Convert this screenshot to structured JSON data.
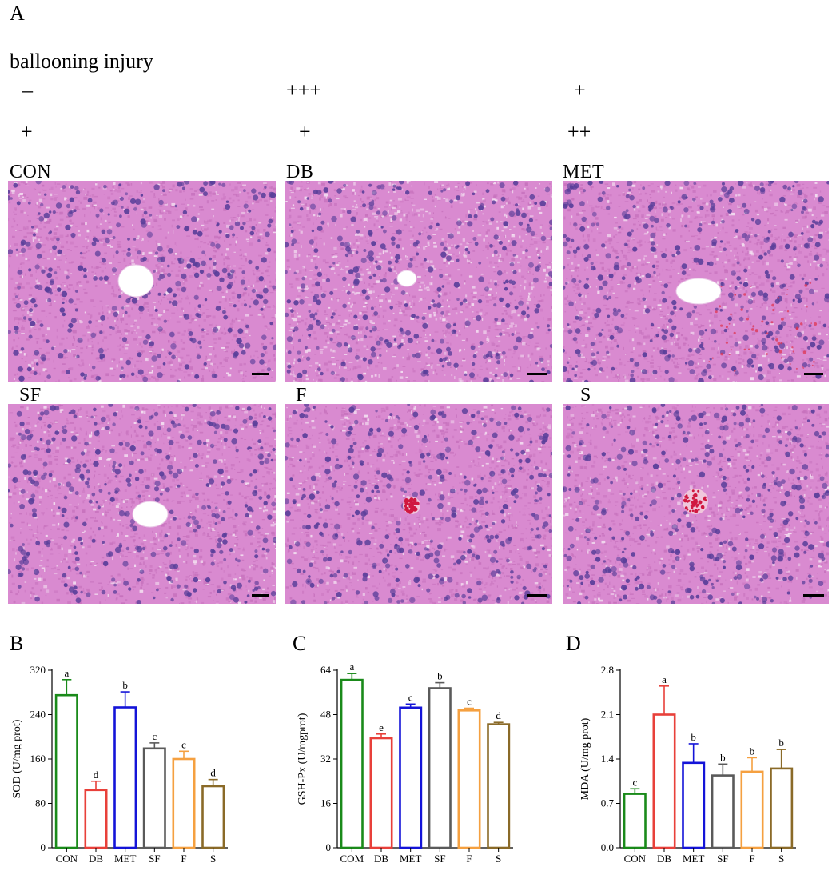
{
  "figure": {
    "panel_a_letter": "A",
    "ballooning_title": "ballooning injury",
    "score_row1": [
      "–",
      "+++",
      "+"
    ],
    "score_row2": [
      "+",
      "+",
      "++"
    ],
    "image_labels": [
      "CON",
      "DB",
      "MET",
      "SF",
      "F",
      "S"
    ],
    "panel_b_letter": "B",
    "panel_c_letter": "C",
    "panel_d_letter": "D"
  },
  "colors": {
    "CON": "#1a8a1a",
    "DB": "#e8403a",
    "MET": "#1414d8",
    "SF": "#5a5a5a",
    "F": "#f5a040",
    "S": "#8a6a28",
    "tissue": "#d98ad0",
    "nuclei": "#5a3f9a"
  },
  "chart_data": [
    {
      "type": "bar",
      "ylabel": "SOD (U/mg prot)",
      "categories": [
        "CON",
        "DB",
        "MET",
        "SF",
        "F",
        "S"
      ],
      "values": [
        275,
        104,
        253,
        179,
        160,
        111
      ],
      "errors": [
        28,
        16,
        28,
        10,
        14,
        12
      ],
      "letters": [
        "a",
        "d",
        "b",
        "c",
        "c",
        "d"
      ],
      "ylim": [
        0,
        320
      ],
      "yticks": [
        "0",
        "80",
        "160",
        "240",
        "320"
      ]
    },
    {
      "type": "bar",
      "ylabel": "GSH-Px (U/mgprot)",
      "categories": [
        "COM",
        "DB",
        "MET",
        "SF",
        "F",
        "S"
      ],
      "values": [
        60.5,
        39.5,
        50.5,
        57.5,
        49.5,
        44.5
      ],
      "errors": [
        2.3,
        1.5,
        1.3,
        2.0,
        0.8,
        0.7
      ],
      "letters": [
        "a",
        "e",
        "c",
        "b",
        "c",
        "d"
      ],
      "ylim": [
        0,
        64
      ],
      "yticks": [
        "0",
        "16",
        "32",
        "48",
        "64"
      ]
    },
    {
      "type": "bar",
      "ylabel": "MDA (U/mg prot)",
      "categories": [
        "CON",
        "DB",
        "MET",
        "SF",
        "F",
        "S"
      ],
      "values": [
        0.85,
        2.1,
        1.34,
        1.14,
        1.2,
        1.25
      ],
      "errors": [
        0.08,
        0.45,
        0.3,
        0.18,
        0.22,
        0.3
      ],
      "letters": [
        "c",
        "a",
        "b",
        "b",
        "b",
        "b"
      ],
      "ylim": [
        0,
        2.8
      ],
      "yticks": [
        "0.0",
        "0.7",
        "1.4",
        "2.1",
        "2.8"
      ]
    }
  ]
}
